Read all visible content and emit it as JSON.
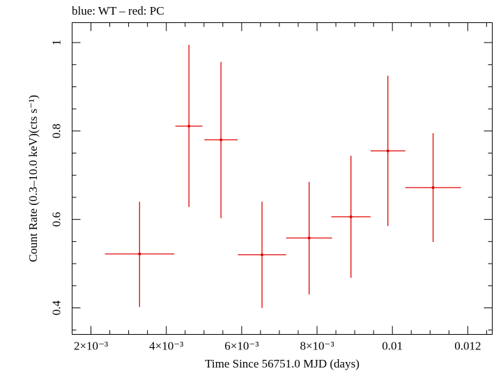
{
  "chart_data": {
    "type": "scatter",
    "title": "blue: WT – red: PC",
    "xlabel": "Time Since 56751.0 MJD (days)",
    "ylabel": "Count Rate (0.3–10.0 keV)(cts s⁻¹)",
    "xlim": [
      0.0015,
      0.01265
    ],
    "ylim": [
      0.34,
      1.045
    ],
    "x_ticks": [
      {
        "value": 0.002,
        "label": "2×10⁻³"
      },
      {
        "value": 0.004,
        "label": "4×10⁻³"
      },
      {
        "value": 0.006,
        "label": "6×10⁻³"
      },
      {
        "value": 0.008,
        "label": "8×10⁻³"
      },
      {
        "value": 0.01,
        "label": "0.01"
      },
      {
        "value": 0.012,
        "label": "0.012"
      }
    ],
    "y_ticks": [
      {
        "value": 0.4,
        "label": "0.4"
      },
      {
        "value": 0.6,
        "label": "0.6"
      },
      {
        "value": 0.8,
        "label": "0.8"
      },
      {
        "value": 1.0,
        "label": "1"
      }
    ],
    "grid": false,
    "series": [
      {
        "name": "PC",
        "color": "#e00000",
        "points": [
          {
            "x": 0.00329,
            "xerr_lo": 0.00092,
            "xerr_hi": 0.00092,
            "y": 0.522,
            "yerr_lo": 0.12,
            "yerr_hi": 0.118
          },
          {
            "x": 0.0046,
            "xerr_lo": 0.00036,
            "xerr_hi": 0.00036,
            "y": 0.811,
            "yerr_lo": 0.183,
            "yerr_hi": 0.184
          },
          {
            "x": 0.00545,
            "xerr_lo": 0.00044,
            "xerr_hi": 0.00044,
            "y": 0.78,
            "yerr_lo": 0.177,
            "yerr_hi": 0.176
          },
          {
            "x": 0.00654,
            "xerr_lo": 0.00064,
            "xerr_hi": 0.00064,
            "y": 0.52,
            "yerr_lo": 0.12,
            "yerr_hi": 0.12
          },
          {
            "x": 0.00779,
            "xerr_lo": 0.00061,
            "xerr_hi": 0.00061,
            "y": 0.558,
            "yerr_lo": 0.128,
            "yerr_hi": 0.127
          },
          {
            "x": 0.0089,
            "xerr_lo": 0.00052,
            "xerr_hi": 0.00052,
            "y": 0.606,
            "yerr_lo": 0.138,
            "yerr_hi": 0.138
          },
          {
            "x": 0.00988,
            "xerr_lo": 0.00046,
            "xerr_hi": 0.00046,
            "y": 0.755,
            "yerr_lo": 0.17,
            "yerr_hi": 0.17
          },
          {
            "x": 0.01108,
            "xerr_lo": 0.00074,
            "xerr_hi": 0.00074,
            "y": 0.672,
            "yerr_lo": 0.123,
            "yerr_hi": 0.123
          }
        ]
      }
    ]
  }
}
